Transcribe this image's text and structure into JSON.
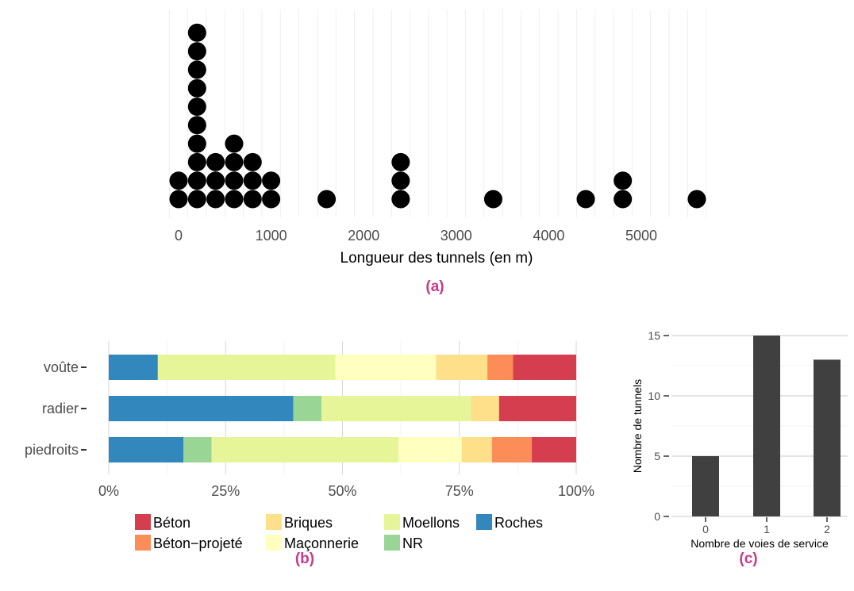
{
  "colors": {
    "dot": "#000000",
    "bar_c": "#404040",
    "panel_label": "#c8398a"
  },
  "chart_data": [
    {
      "id": "a",
      "type": "scatter",
      "panel_label": "(a)",
      "xlabel": "Longueur des tunnels (en m)",
      "xlim": [
        -100,
        5800
      ],
      "xticks": [
        0,
        1000,
        2000,
        3000,
        4000,
        5000
      ],
      "xtick_labels": [
        "0",
        "1000",
        "2000",
        "3000",
        "4000",
        "5000"
      ],
      "grid": true,
      "stacks": [
        {
          "x": 0,
          "count": 2
        },
        {
          "x": 200,
          "count": 10
        },
        {
          "x": 400,
          "count": 3
        },
        {
          "x": 600,
          "count": 4
        },
        {
          "x": 800,
          "count": 3
        },
        {
          "x": 1000,
          "count": 2
        },
        {
          "x": 1600,
          "count": 1
        },
        {
          "x": 2400,
          "count": 3
        },
        {
          "x": 3400,
          "count": 1
        },
        {
          "x": 4400,
          "count": 1
        },
        {
          "x": 4800,
          "count": 2
        },
        {
          "x": 5600,
          "count": 1
        }
      ]
    },
    {
      "id": "b",
      "type": "bar",
      "orientation": "horizontal",
      "stacked": true,
      "panel_label": "(b)",
      "categories": [
        "voûte",
        "radier",
        "piedroits"
      ],
      "xticks": [
        0,
        25,
        50,
        75,
        100
      ],
      "xtick_labels": [
        "0%",
        "25%",
        "50%",
        "75%",
        "100%"
      ],
      "xlim": [
        0,
        100
      ],
      "series": [
        {
          "name": "Roches",
          "color": "#3288bd",
          "values": [
            10.5,
            39.5,
            16
          ]
        },
        {
          "name": "NR",
          "color": "#99d594",
          "values": [
            0,
            6,
            6
          ]
        },
        {
          "name": "Moellons",
          "color": "#e6f598",
          "values": [
            38,
            32,
            40
          ]
        },
        {
          "name": "Maçonnerie",
          "color": "#ffffbf",
          "values": [
            21.5,
            0,
            13.5
          ]
        },
        {
          "name": "Briques",
          "color": "#fee08b",
          "values": [
            11,
            6,
            6.5
          ]
        },
        {
          "name": "Béton−projeté",
          "color": "#fc8d59",
          "values": [
            5.5,
            0,
            8.5
          ]
        },
        {
          "name": "Béton",
          "color": "#d53e4f",
          "values": [
            13.5,
            16.5,
            9.5
          ]
        }
      ],
      "legend_order": [
        "Béton",
        "Briques",
        "Moellons",
        "Roches",
        "Béton−projeté",
        "Maçonnerie",
        "NR"
      ],
      "legend_position": "bottom"
    },
    {
      "id": "c",
      "type": "bar",
      "panel_label": "(c)",
      "categories": [
        "0",
        "1",
        "2"
      ],
      "values": [
        5,
        15,
        13
      ],
      "xlabel": "Nombre de voies de service",
      "ylabel": "Nombre de tunnels",
      "ylim": [
        0,
        15.4
      ],
      "yticks": [
        0,
        5,
        10,
        15
      ],
      "ytick_labels": [
        "0",
        "5",
        "10",
        "15"
      ],
      "grid": true
    }
  ]
}
